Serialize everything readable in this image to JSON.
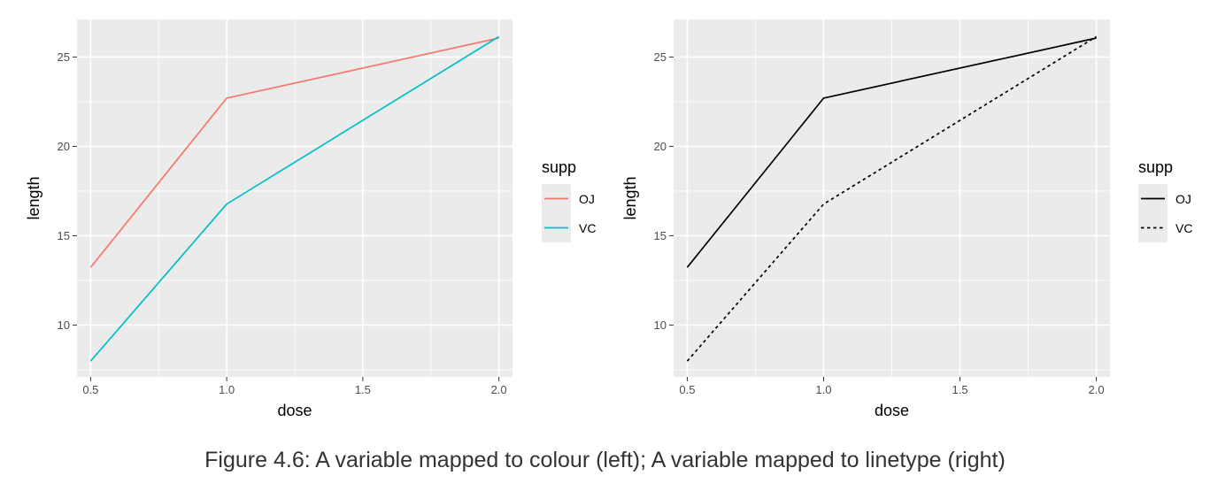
{
  "caption": "Figure 4.6: A variable mapped to colour (left); A variable mapped to linetype (right)",
  "colors": {
    "panel_bg": "#EBEBEB",
    "grid": "#FFFFFF",
    "tick_text": "#4D4D4D",
    "axis_title": "#000000",
    "oj": "#F8766D",
    "vc": "#00BFC4",
    "black": "#000000"
  },
  "chart_data": [
    {
      "type": "line",
      "xlabel": "dose",
      "ylabel": "length",
      "x": [
        0.5,
        1.0,
        2.0
      ],
      "xlim": [
        0.45,
        2.05
      ],
      "ylim": [
        7.1,
        27.1
      ],
      "x_ticks": [
        "0.5",
        "1.0",
        "1.5",
        "2.0"
      ],
      "y_ticks": [
        "10",
        "15",
        "20",
        "25"
      ],
      "grid": true,
      "legend": {
        "title": "supp",
        "position": "right",
        "encoding": "colour"
      },
      "series": [
        {
          "name": "OJ",
          "values": [
            13.23,
            22.7,
            26.06
          ],
          "color": "#F8766D",
          "linetype": "solid"
        },
        {
          "name": "VC",
          "values": [
            7.98,
            16.77,
            26.14
          ],
          "color": "#00BFC4",
          "linetype": "solid"
        }
      ]
    },
    {
      "type": "line",
      "xlabel": "dose",
      "ylabel": "length",
      "x": [
        0.5,
        1.0,
        2.0
      ],
      "xlim": [
        0.45,
        2.05
      ],
      "ylim": [
        7.1,
        27.1
      ],
      "x_ticks": [
        "0.5",
        "1.0",
        "1.5",
        "2.0"
      ],
      "y_ticks": [
        "10",
        "15",
        "20",
        "25"
      ],
      "grid": true,
      "legend": {
        "title": "supp",
        "position": "right",
        "encoding": "linetype"
      },
      "series": [
        {
          "name": "OJ",
          "values": [
            13.23,
            22.7,
            26.06
          ],
          "color": "#000000",
          "linetype": "solid"
        },
        {
          "name": "VC",
          "values": [
            7.98,
            16.77,
            26.14
          ],
          "color": "#000000",
          "linetype": "dashed"
        }
      ]
    }
  ]
}
